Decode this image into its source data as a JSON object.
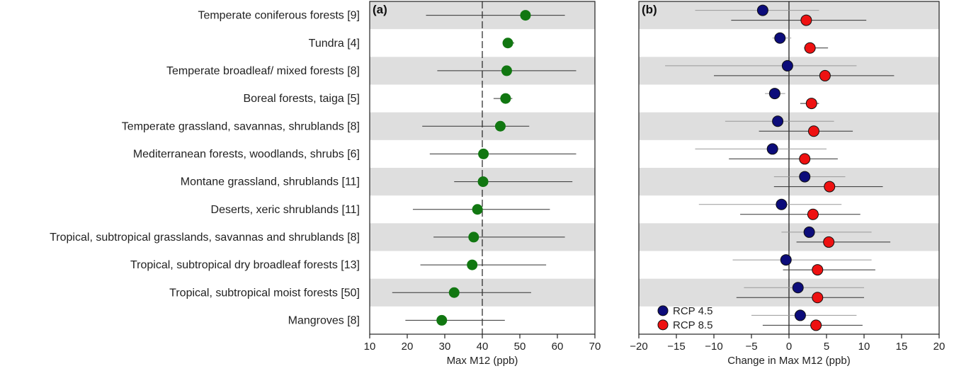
{
  "chart_data": [
    {
      "type": "scatter",
      "panel_label": "(a)",
      "xlabel": "Max  M12 (ppb)",
      "xlim": [
        10,
        70
      ],
      "xticks": [
        10,
        20,
        30,
        40,
        50,
        60,
        70
      ],
      "reference_line": 40,
      "categories": [
        "Temperate coniferous forests [9]",
        "Tundra [4]",
        "Temperate broadleaf/ mixed forests [8]",
        "Boreal forests, taiga [5]",
        "Temperate grassland, savannas, shrublands [8]",
        "Mediterranean forests, woodlands, shrubs [6]",
        "Montane grassland, shrublands [11]",
        "Deserts, xeric shrublands [11]",
        "Tropical, subtropical grasslands, savannas and shrublands [8]",
        "Tropical, subtropical dry broadleaf forests [13]",
        "Tropical, subtropical moist forests [50]",
        "Mangroves [8]"
      ],
      "series": [
        {
          "color": "#117711",
          "values": [
            51.5,
            46.8,
            46.5,
            46.2,
            44.8,
            40.3,
            40.2,
            38.7,
            37.7,
            37.3,
            32.5,
            29.2
          ],
          "error_low": [
            25,
            46,
            28,
            43,
            24,
            26,
            32.5,
            21.5,
            27,
            23.5,
            16,
            19.5
          ],
          "error_high": [
            62,
            48.5,
            65,
            48,
            52.5,
            65,
            64,
            58,
            62,
            57,
            53,
            46
          ]
        }
      ]
    },
    {
      "type": "scatter",
      "panel_label": "(b)",
      "xlabel": "Change in Max M12 (ppb)",
      "xlim": [
        -20,
        20
      ],
      "xticks": [
        -20,
        -15,
        -10,
        -5,
        0,
        5,
        10,
        15,
        20
      ],
      "reference_line": 0,
      "legend_position": "bottom-left",
      "series": [
        {
          "name": "RCP 4.5",
          "color": "#0c0c7a",
          "values": [
            -3.5,
            -1.2,
            -0.2,
            -1.9,
            -1.5,
            -2.2,
            2.1,
            -1.0,
            2.7,
            -0.4,
            1.2,
            1.5
          ],
          "error_low": [
            -12.5,
            -2.2,
            -16.5,
            -3.2,
            -8.5,
            -12.5,
            -2,
            -12,
            -1,
            -7.5,
            -6,
            -5
          ],
          "error_high": [
            4,
            0.3,
            9,
            -0.5,
            6,
            5,
            7.5,
            7,
            11,
            11,
            10,
            9
          ]
        },
        {
          "name": "RCP 8.5",
          "color": "#ee1111",
          "values": [
            2.3,
            2.8,
            4.8,
            3.0,
            3.3,
            2.1,
            5.4,
            3.2,
            5.3,
            3.8,
            3.8,
            3.6
          ],
          "error_low": [
            -7.7,
            2.0,
            -10,
            1.5,
            -4,
            -8,
            -2,
            -6.5,
            1,
            -0.8,
            -7,
            -3.5
          ],
          "error_high": [
            10.3,
            5.2,
            14,
            4,
            8.5,
            6.5,
            12.5,
            9.5,
            13.5,
            11.5,
            10,
            9.8
          ]
        }
      ]
    }
  ]
}
